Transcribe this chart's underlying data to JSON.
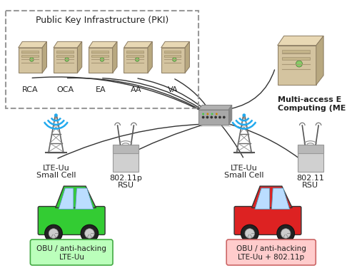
{
  "bg_color": "#ffffff",
  "pki_label": "Public Key Infrastructure (PKI)",
  "pki_servers": [
    "RCA",
    "OCA",
    "EA",
    "AA",
    "VA"
  ],
  "mec_label1": "Multi-access E",
  "mec_label2": "Computing (ME",
  "left_tower_label1": "LTE-Uu",
  "left_tower_label2": "Small Cell",
  "left_rsu_label1": "802.11p",
  "left_rsu_label2": "RSU",
  "right_tower_label1": "LTE-Uu",
  "right_tower_label2": "Small Cell",
  "right_rsu_label1": "802.11",
  "right_rsu_label2": "RSU",
  "green_car_label1": "OBU / anti-hacking",
  "green_car_label2": "LTE-Uu",
  "red_car_label1": "OBU / anti-hacking",
  "red_car_label2": "LTE-Uu + 802.11p",
  "server_color_face": "#d4c4a0",
  "server_color_top": "#e8d8b4",
  "server_color_side": "#b8a880",
  "server_color_edge": "#8a7a60",
  "router_color": "#909090",
  "tower_arc_color": "#22aaee",
  "rsu_color": "#c8c8c8",
  "car_green": "#33cc33",
  "car_red": "#dd2222",
  "box_green_face": "#bbffbb",
  "box_green_edge": "#44aa44",
  "box_red_face": "#ffcccc",
  "box_red_edge": "#cc6666",
  "line_color": "#333333",
  "text_color": "#222222",
  "pki_edge_color": "#999999"
}
